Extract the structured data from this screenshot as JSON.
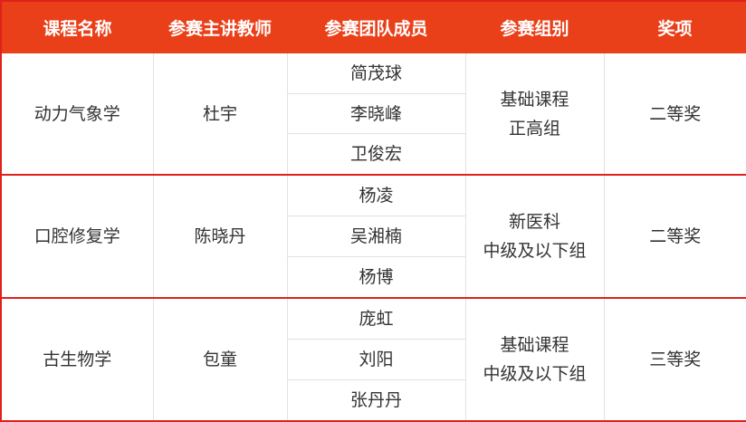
{
  "colors": {
    "header_bg": "#e9401a",
    "group_border": "#e0201c"
  },
  "headers": [
    "课程名称",
    "参赛主讲教师",
    "参赛团队成员",
    "参赛组别",
    "奖项"
  ],
  "rows": [
    {
      "course": "动力气象学",
      "teacher": "杜宇",
      "members": [
        "简茂球",
        "李晓峰",
        "卫俊宏"
      ],
      "group": [
        "基础课程",
        "正高组"
      ],
      "award": "二等奖"
    },
    {
      "course": "口腔修复学",
      "teacher": "陈晓丹",
      "members": [
        "杨凌",
        "吴湘楠",
        "杨博"
      ],
      "group": [
        "新医科",
        "中级及以下组"
      ],
      "award": "二等奖"
    },
    {
      "course": "古生物学",
      "teacher": "包童",
      "members": [
        "庞虹",
        "刘阳",
        "张丹丹"
      ],
      "group": [
        "基础课程",
        "中级及以下组"
      ],
      "award": "三等奖"
    }
  ]
}
